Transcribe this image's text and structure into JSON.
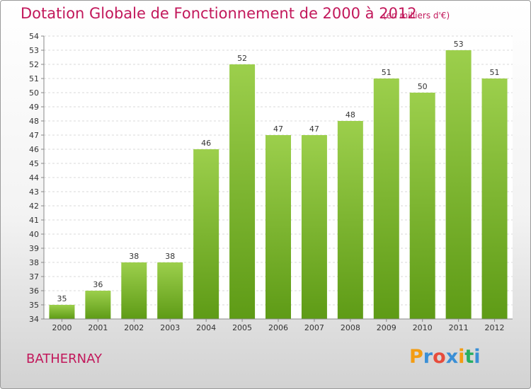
{
  "chart_data": {
    "type": "bar",
    "title": "Dotation Globale de Fonctionnement de 2000 à 2012",
    "subtitle": "(en milliers d'€)",
    "categories": [
      "2000",
      "2001",
      "2002",
      "2003",
      "2004",
      "2005",
      "2006",
      "2007",
      "2008",
      "2009",
      "2010",
      "2011",
      "2012"
    ],
    "values": [
      35,
      36,
      38,
      38,
      46,
      52,
      47,
      47,
      48,
      51,
      50,
      53,
      51
    ],
    "ylim": [
      34,
      54
    ],
    "yticks": [
      34,
      35,
      36,
      37,
      38,
      39,
      40,
      41,
      42,
      43,
      44,
      45,
      46,
      47,
      48,
      49,
      50,
      51,
      52,
      53,
      54
    ],
    "xlabel": "",
    "ylabel": "",
    "grid": true,
    "legend": "none",
    "bar_color_top": "#9ccf4c",
    "bar_color_bottom": "#5e9b16"
  },
  "footer": {
    "place": "BATHERNAY"
  },
  "logo": {
    "letters": [
      "P",
      "r",
      "o",
      "x",
      "i",
      "t",
      "i"
    ],
    "colors": [
      "#f39c12",
      "#3a8fd6",
      "#e74c3c",
      "#3a8fd6",
      "#f39c12",
      "#27ae60",
      "#3a8fd6"
    ]
  }
}
